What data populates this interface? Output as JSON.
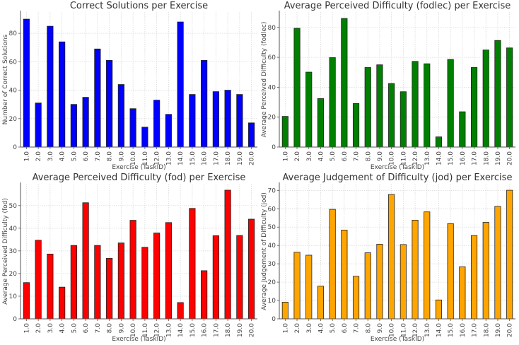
{
  "chart_data": [
    {
      "type": "bar",
      "title": "Correct Solutions per Exercise",
      "xlabel": "Exercise (TaskID)",
      "ylabel": "Number of Correct Solutions",
      "categories": [
        "1.0",
        "2.0",
        "3.0",
        "4.0",
        "5.0",
        "6.0",
        "7.0",
        "8.0",
        "9.0",
        "10.0",
        "11.0",
        "12.0",
        "13.0",
        "14.0",
        "15.0",
        "16.0",
        "17.0",
        "18.0",
        "19.0",
        "20.0"
      ],
      "values": [
        90,
        31,
        85,
        74,
        30,
        35,
        69,
        61,
        44,
        27,
        14,
        33,
        23,
        88,
        37,
        61,
        39,
        40,
        37,
        17
      ],
      "ylim": [
        0,
        95
      ],
      "yticks": [
        0,
        20,
        40,
        60,
        80
      ],
      "color": "#0000ff",
      "grid": true
    },
    {
      "type": "bar",
      "title": "Average Perceived Difficulty (fodlec) per Exercise",
      "xlabel": "Exercise (TaskID)",
      "ylabel": "Average Perceived Difficulty (fodlec)",
      "categories": [
        "1.0",
        "2.0",
        "3.0",
        "4.0",
        "5.0",
        "6.0",
        "7.0",
        "8.0",
        "9.0",
        "10.0",
        "11.0",
        "12.0",
        "13.0",
        "14.0",
        "15.0",
        "16.0",
        "17.0",
        "18.0",
        "19.0",
        "20.0"
      ],
      "values": [
        20.5,
        79.4,
        50.1,
        32.4,
        59.8,
        86.0,
        29.1,
        53.2,
        55.0,
        42.5,
        37.0,
        57.3,
        55.7,
        6.8,
        58.6,
        23.6,
        53.2,
        64.9,
        71.3,
        66.3
      ],
      "ylim": [
        0,
        90.3
      ],
      "yticks": [
        0,
        20,
        40,
        60,
        80
      ],
      "color": "#008000",
      "grid": true
    },
    {
      "type": "bar",
      "title": "Average Perceived Difficulty (fod) per Exercise",
      "xlabel": "Exercise (TaskID)",
      "ylabel": "Average Perceived Difficulty (fod)",
      "categories": [
        "1.0",
        "2.0",
        "3.0",
        "4.0",
        "5.0",
        "6.0",
        "7.0",
        "8.0",
        "9.0",
        "10.0",
        "11.0",
        "12.0",
        "13.0",
        "14.0",
        "15.0",
        "16.0",
        "17.0",
        "18.0",
        "19.0",
        "20.0"
      ],
      "values": [
        16.0,
        34.7,
        28.6,
        14.0,
        32.4,
        51.25,
        32.4,
        26.7,
        33.5,
        43.5,
        31.6,
        37.9,
        42.5,
        7.2,
        48.75,
        21.25,
        36.7,
        56.8,
        36.8,
        44.0
      ],
      "ylim": [
        0,
        59.6
      ],
      "yticks": [
        0,
        10,
        20,
        30,
        40,
        50
      ],
      "color": "#ff0000",
      "grid": true
    },
    {
      "type": "bar",
      "title": "Average Judgement of Difficulty (jod) per Exercise",
      "xlabel": "Exercise (TaskID)",
      "ylabel": "Average Judgement of Difficulty (jod)",
      "categories": [
        "1.0",
        "2.0",
        "3.0",
        "4.0",
        "5.0",
        "6.0",
        "7.0",
        "8.0",
        "9.0",
        "10.0",
        "11.0",
        "12.0",
        "13.0",
        "14.0",
        "15.0",
        "16.0",
        "17.0",
        "18.0",
        "19.0",
        "20.0"
      ],
      "values": [
        9.1,
        36.3,
        34.7,
        17.8,
        59.7,
        48.4,
        23.2,
        36.0,
        40.7,
        67.8,
        40.5,
        53.8,
        58.3,
        10.3,
        51.9,
        28.4,
        45.4,
        52.6,
        61.3,
        70.1
      ],
      "ylim": [
        0,
        73.6
      ],
      "yticks": [
        0,
        10,
        20,
        30,
        40,
        50,
        60,
        70
      ],
      "color": "#ffa500",
      "grid": true
    }
  ]
}
